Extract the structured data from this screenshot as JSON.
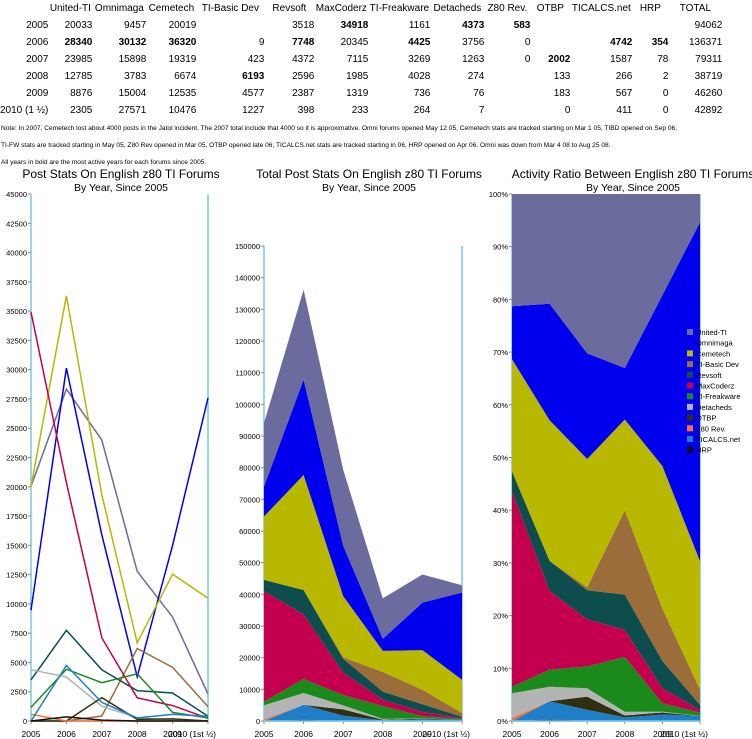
{
  "table": {
    "columns": [
      "United-TI",
      "Omnimaga",
      "Cemetech",
      "TI-Basic Dev",
      "Revsoft",
      "MaxCoderz",
      "TI-Freakware",
      "Detacheds",
      "Z80 Rev.",
      "OTBP",
      "TICALCS.net",
      "HRP",
      "TOTAL"
    ],
    "rows": [
      {
        "year": "2005",
        "cells": [
          "20033",
          "9457",
          "20019",
          "",
          "3518",
          "34918",
          "1161",
          "4373",
          "583",
          "",
          "",
          "",
          "94062"
        ],
        "bold": [
          5,
          7,
          8
        ]
      },
      {
        "year": "2006",
        "cells": [
          "28340",
          "30132",
          "36320",
          "9",
          "7748",
          "20345",
          "4425",
          "3756",
          "0",
          "",
          "4742",
          "354",
          "136371"
        ],
        "bold": [
          0,
          1,
          2,
          4,
          6,
          10,
          11
        ]
      },
      {
        "year": "2007",
        "cells": [
          "23985",
          "15898",
          "19319",
          "423",
          "4372",
          "7115",
          "3269",
          "1263",
          "0",
          "2002",
          "1587",
          "78",
          "79311"
        ],
        "bold": [
          9
        ]
      },
      {
        "year": "2008",
        "cells": [
          "12785",
          "3783",
          "6674",
          "6193",
          "2596",
          "1985",
          "4028",
          "274",
          "",
          "133",
          "266",
          "2",
          "38719"
        ],
        "bold": [
          3
        ]
      },
      {
        "year": "2009",
        "cells": [
          "8876",
          "15004",
          "12535",
          "4577",
          "2387",
          "1319",
          "736",
          "76",
          "",
          "183",
          "567",
          "0",
          "46260"
        ],
        "bold": []
      },
      {
        "year": "2010 (1 ½)",
        "cells": [
          "2305",
          "27571",
          "10476",
          "1227",
          "398",
          "233",
          "264",
          "7",
          "",
          "0",
          "411",
          "0",
          "42892"
        ],
        "bold": []
      }
    ]
  },
  "notes": {
    "line1": "Note: In 2007, Cemetech lost about 4000 posts in the Jatol incident. The 2007 total include that 4000 so it is approximative. Omni forums opened May 12 05, Cemetech stats are tracked starting on Mar 1 05, TIBD opened on Sep 06,",
    "line2": "TI-FW stats are tracked starting in May 05, Z80 Rev opened in Mar 05, OTBP opened late 06, TICALCS.net stats are tracked starting in 06, HRP opened on Apr 06. Omni was down from Mar 4 08 to Aug 25 08.",
    "line3": "All years in bold are the most active years for each forums since 2005."
  },
  "chart_data": [
    {
      "type": "line",
      "title": "Post Stats On English z80 TI Forums",
      "subtitle": "By Year, Since 2005",
      "categories": [
        "2005",
        "2006",
        "2007",
        "2008",
        "2009",
        "2010 (1st ½)"
      ],
      "ylim": [
        0,
        45000
      ],
      "yticks": [
        0,
        2500,
        5000,
        7500,
        10000,
        12500,
        15000,
        17500,
        20000,
        22500,
        25000,
        27500,
        30000,
        32500,
        35000,
        37500,
        40000,
        42500,
        45000
      ],
      "grid": false
    },
    {
      "type": "area",
      "stacked": true,
      "title": "Total Post Stats On English z80 TI Forums",
      "subtitle": "By Year, Since 2005",
      "categories": [
        "2005",
        "2006",
        "2007",
        "2008",
        "2009",
        "2010 (1st ½)"
      ],
      "ylim": [
        0,
        150000
      ],
      "yticks": [
        0,
        10000,
        20000,
        30000,
        40000,
        50000,
        60000,
        70000,
        80000,
        90000,
        100000,
        110000,
        120000,
        130000,
        140000,
        150000
      ],
      "grid": false
    },
    {
      "type": "area",
      "stacked": true,
      "normalized": true,
      "title": "Activity Ratio Between English z80 TI Forums",
      "subtitle": "By Year, Since 2005",
      "categories": [
        "2005",
        "2006",
        "2007",
        "2008",
        "2009",
        "2010 (1st ½)"
      ],
      "ylim": [
        0,
        100
      ],
      "yticks": [
        "0%",
        "10%",
        "20%",
        "30%",
        "40%",
        "50%",
        "60%",
        "70%",
        "80%",
        "90%",
        "100%"
      ],
      "legend_position": "right",
      "grid": false
    }
  ],
  "series": [
    {
      "name": "United-TI",
      "color": "#6b6b9e",
      "values": [
        20033,
        28340,
        23985,
        12785,
        8876,
        2305
      ]
    },
    {
      "name": "Omnimaga",
      "color": "#0000ee",
      "values": [
        9457,
        30132,
        15898,
        3783,
        15004,
        27571
      ]
    },
    {
      "name": "Cemetech",
      "color": "#b8b800",
      "values": [
        20019,
        36320,
        19319,
        6674,
        12535,
        10476
      ]
    },
    {
      "name": "TI-Basic Dev",
      "color": "#9a6d3a",
      "values": [
        0,
        9,
        423,
        6193,
        4577,
        1227
      ]
    },
    {
      "name": "Revsoft",
      "color": "#0d4d4d",
      "values": [
        3518,
        7748,
        4372,
        2596,
        2387,
        398
      ]
    },
    {
      "name": "MaxCoderz",
      "color": "#c4004e",
      "values": [
        34918,
        20345,
        7115,
        1985,
        1319,
        233
      ]
    },
    {
      "name": "TI-Freakware",
      "color": "#1a8a1a",
      "values": [
        1161,
        4425,
        3269,
        4028,
        736,
        264
      ]
    },
    {
      "name": "Detacheds",
      "color": "#b4b4b4",
      "values": [
        4373,
        3756,
        1263,
        274,
        76,
        7
      ]
    },
    {
      "name": "OTBP",
      "color": "#303010",
      "values": [
        0,
        0,
        2002,
        133,
        183,
        0
      ]
    },
    {
      "name": "Z80 Rev.",
      "color": "#ff7033",
      "values": [
        583,
        0,
        0,
        0,
        0,
        0
      ]
    },
    {
      "name": "TICALCS.net",
      "color": "#1e7fc8",
      "values": [
        0,
        4742,
        1587,
        266,
        567,
        411
      ]
    },
    {
      "name": "HRP",
      "color": "#101010",
      "values": [
        0,
        354,
        78,
        2,
        0,
        0
      ]
    }
  ]
}
